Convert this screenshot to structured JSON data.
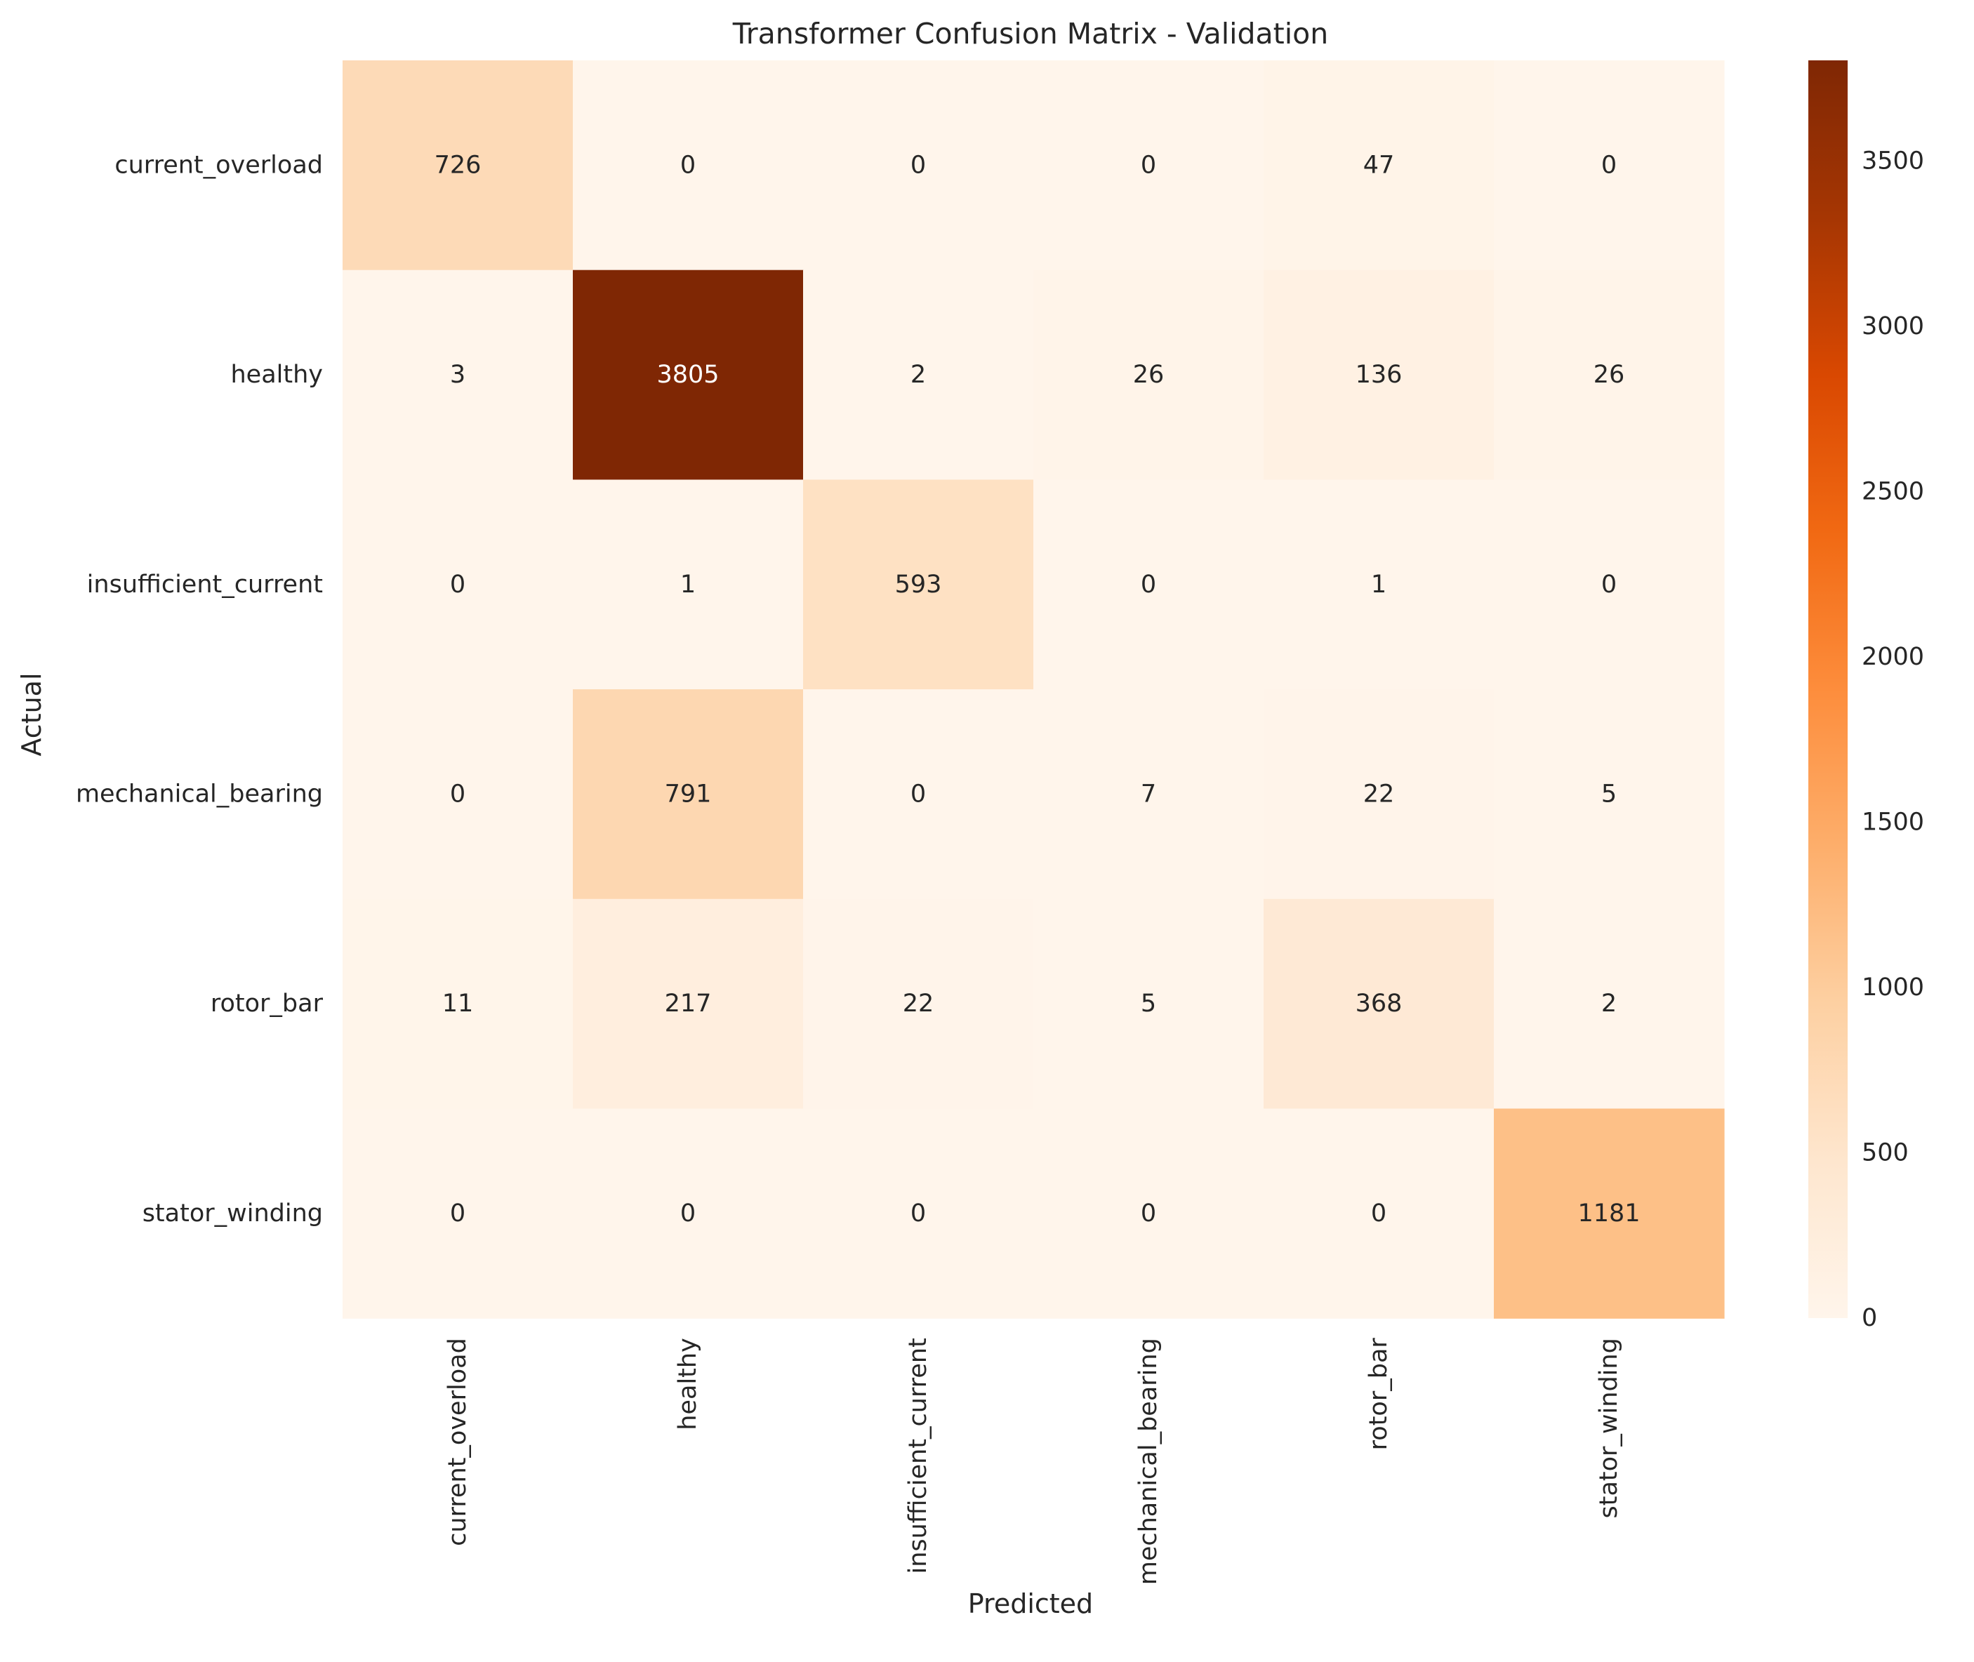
{
  "chart_data": {
    "type": "heatmap",
    "title": "Transformer Confusion Matrix - Validation",
    "xlabel": "Predicted",
    "ylabel": "Actual",
    "x_categories": [
      "current_overload",
      "healthy",
      "insufficient_current",
      "mechanical_bearing",
      "rotor_bar",
      "stator_winding"
    ],
    "y_categories": [
      "current_overload",
      "healthy",
      "insufficient_current",
      "mechanical_bearing",
      "rotor_bar",
      "stator_winding"
    ],
    "values": [
      [
        726,
        0,
        0,
        0,
        47,
        0
      ],
      [
        3,
        3805,
        2,
        26,
        136,
        26
      ],
      [
        0,
        1,
        593,
        0,
        1,
        0
      ],
      [
        0,
        791,
        0,
        7,
        22,
        5
      ],
      [
        11,
        217,
        22,
        5,
        368,
        2
      ],
      [
        0,
        0,
        0,
        0,
        0,
        1181
      ]
    ],
    "color_range": [
      0,
      3805
    ],
    "colormap": "Oranges",
    "colorbar_ticks": [
      0,
      500,
      1000,
      1500,
      2000,
      2500,
      3000,
      3500
    ],
    "grid": false,
    "colorbar_position": "right"
  }
}
